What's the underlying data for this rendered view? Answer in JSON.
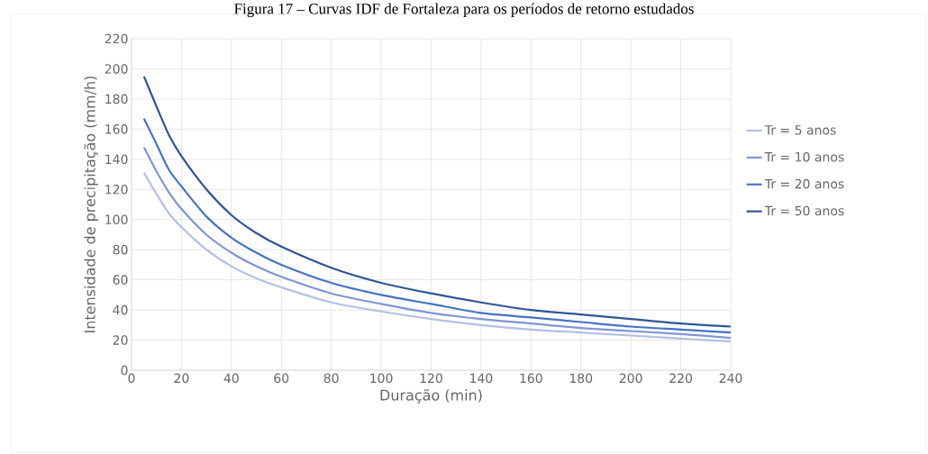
{
  "chart_data": {
    "type": "line",
    "title": "Figura 17 – Curvas IDF de Fortaleza para os períodos de retorno estudados",
    "xlabel": "Duração (min)",
    "ylabel": "Intensidade de precipitação (mm/h)",
    "x": [
      5,
      10,
      15,
      20,
      30,
      40,
      50,
      60,
      80,
      100,
      120,
      140,
      160,
      180,
      200,
      220,
      240
    ],
    "series": [
      {
        "name": "Tr = 5 anos",
        "color": "#b4c0e4",
        "values": [
          131,
          117,
          104,
          95,
          80,
          69,
          61,
          55,
          45,
          39,
          34,
          30,
          27,
          25,
          23,
          21,
          19
        ]
      },
      {
        "name": "Tr = 10 anos",
        "color": "#7f96d4",
        "values": [
          148,
          132,
          118,
          107,
          90,
          78,
          69,
          62,
          51,
          44,
          38,
          34,
          31,
          28,
          26,
          24,
          21.5
        ]
      },
      {
        "name": "Tr = 20 anos",
        "color": "#4472c4",
        "values": [
          167,
          150,
          133,
          122,
          102,
          88,
          78,
          70,
          58,
          50,
          44,
          38,
          35,
          32,
          29,
          27,
          25
        ]
      },
      {
        "name": "Tr = 50 anos",
        "color": "#2f5597",
        "values": [
          195,
          175,
          156,
          142,
          120,
          103,
          91,
          82,
          68,
          58,
          51,
          45,
          40,
          37,
          34,
          31,
          29
        ]
      }
    ],
    "xlim": [
      0,
      240
    ],
    "ylim": [
      0,
      220
    ],
    "xticks": [
      0,
      20,
      40,
      60,
      80,
      100,
      120,
      140,
      160,
      180,
      200,
      220,
      240
    ],
    "yticks": [
      0,
      20,
      40,
      60,
      80,
      100,
      120,
      140,
      160,
      180,
      200,
      220
    ],
    "grid": true,
    "legend": "right",
    "marker": "none",
    "line_style": "solid"
  }
}
